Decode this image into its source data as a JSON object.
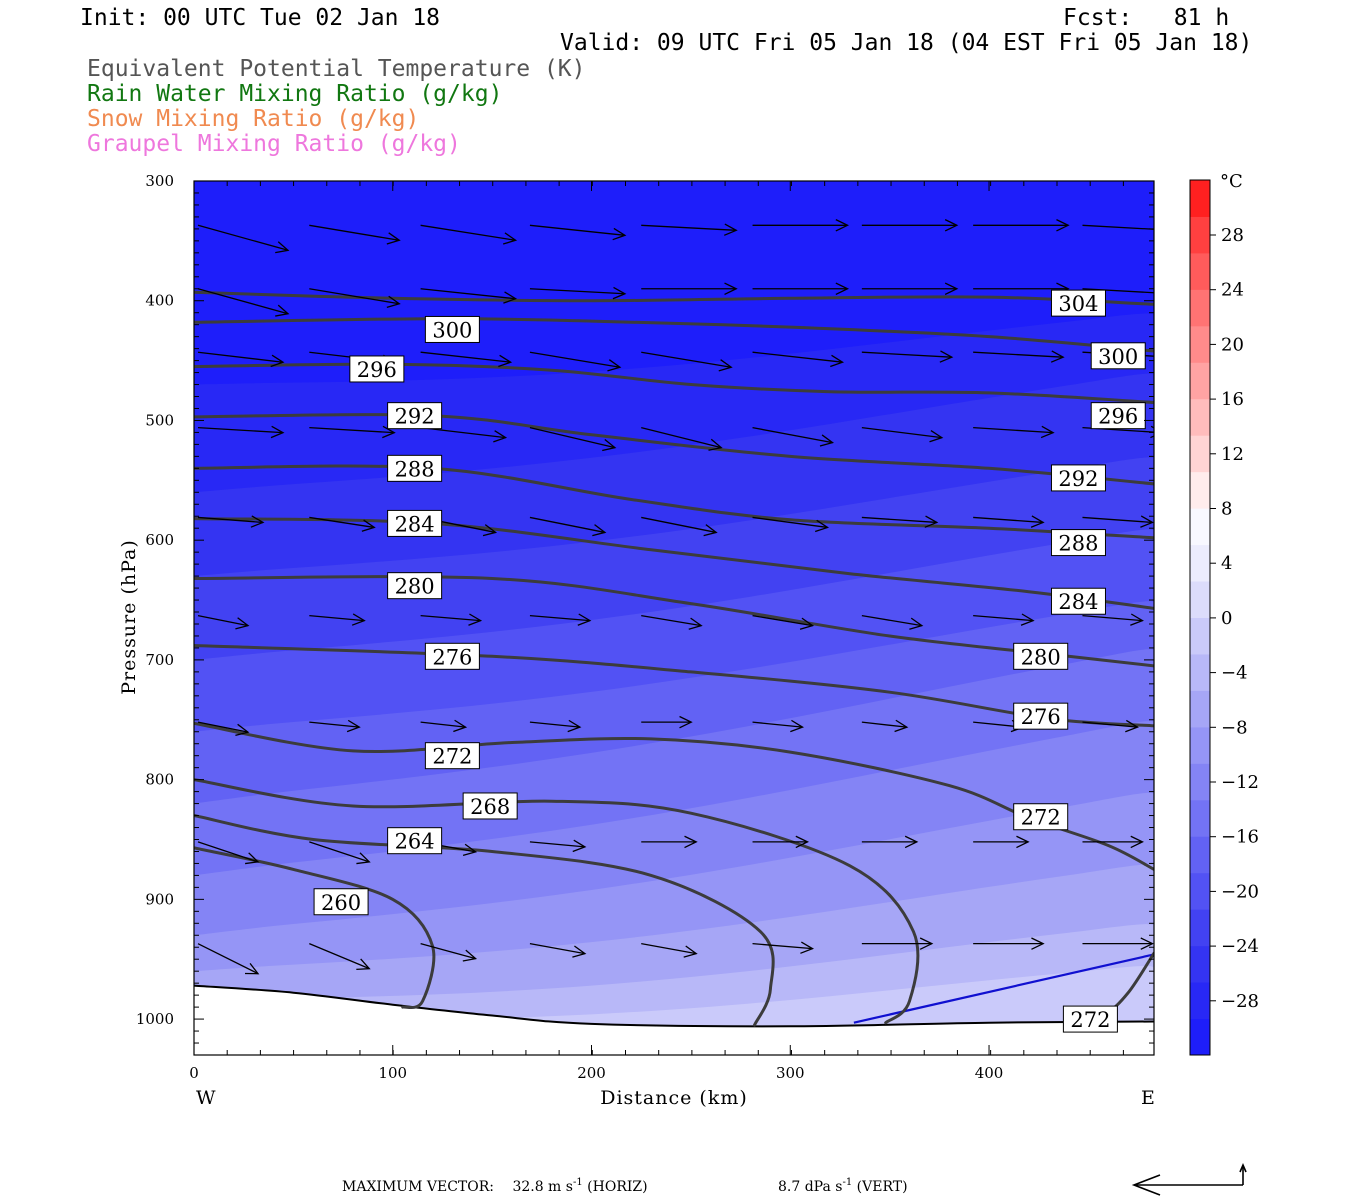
{
  "header": {
    "init": "Init: 00 UTC Tue 02 Jan 18",
    "fcst": "Fcst:   81 h",
    "valid": "Valid: 09 UTC Fri 05 Jan 18 (04 EST Fri 05 Jan 18)"
  },
  "legend": [
    {
      "text": "Equivalent Potential Temperature (K)",
      "color": "#555555"
    },
    {
      "text": "Rain Water Mixing Ratio (g/kg)",
      "color": "#117711"
    },
    {
      "text": "Snow Mixing Ratio (g/kg)",
      "color": "#f08a50"
    },
    {
      "text": "Graupel Mixing Ratio (g/kg)",
      "color": "#ee77dd"
    }
  ],
  "axes": {
    "ylabel": "Pressure (hPa)",
    "xlabel": "Distance (km)",
    "west": "W",
    "east": "E",
    "y_ticks": [
      "300",
      "400",
      "500",
      "600",
      "700",
      "800",
      "900",
      "1000"
    ],
    "x_ticks": [
      "0",
      "100",
      "200",
      "300",
      "400"
    ]
  },
  "colorbar": {
    "unit": "°C",
    "labels": [
      "28",
      "24",
      "20",
      "16",
      "12",
      "8",
      "4",
      "0",
      "−4",
      "−8",
      "−12",
      "−16",
      "−20",
      "−24",
      "−28"
    ]
  },
  "footer": {
    "prefix": "MAXIMUM VECTOR:",
    "horiz_value": "32.8 m s",
    "horiz_exp": "-1",
    "horiz_suffix": " (HORIZ)",
    "vert_value": "8.7 dPa s",
    "vert_exp": "-1",
    "vert_suffix": " (VERT)"
  },
  "chart_data": {
    "type": "contour",
    "x_range_km": [
      0,
      483
    ],
    "y_range_hpa": [
      300,
      1030
    ],
    "y_scale": "linear-pressure",
    "fill_variable_color_scale": {
      "min": -32,
      "max": 32,
      "step": 4,
      "colors": [
        "#1e1efa",
        "#2828f5",
        "#3434f2",
        "#4242f2",
        "#5252f4",
        "#6262f4",
        "#7373f5",
        "#8484f5",
        "#9595f6",
        "#a6a6f6",
        "#b8b8f8",
        "#cacafa",
        "#dcdcfb",
        "#ececfd",
        "#f8f8ff",
        "#ffecec",
        "#ffd4d4",
        "#ffbcbc",
        "#ffa3a3",
        "#ff8b8b",
        "#ff7373",
        "#ff5b5b",
        "#ff4040",
        "#ff2020"
      ]
    },
    "theta_e_contours": [
      {
        "value": 304,
        "points": [
          [
            0,
            393
          ],
          [
            100,
            398
          ],
          [
            200,
            400
          ],
          [
            300,
            398
          ],
          [
            400,
            397
          ],
          [
            483,
            403
          ]
        ]
      },
      {
        "value": 300,
        "points": [
          [
            0,
            418
          ],
          [
            120,
            415
          ],
          [
            200,
            417
          ],
          [
            300,
            422
          ],
          [
            400,
            430
          ],
          [
            483,
            442
          ]
        ]
      },
      {
        "value": 296,
        "points": [
          [
            0,
            455
          ],
          [
            100,
            453
          ],
          [
            180,
            458
          ],
          [
            250,
            470
          ],
          [
            320,
            476
          ],
          [
            400,
            477
          ],
          [
            483,
            485
          ]
        ]
      },
      {
        "value": 292,
        "points": [
          [
            0,
            497
          ],
          [
            120,
            496
          ],
          [
            200,
            512
          ],
          [
            300,
            530
          ],
          [
            400,
            540
          ],
          [
            483,
            553
          ]
        ]
      },
      {
        "value": 288,
        "points": [
          [
            0,
            540
          ],
          [
            120,
            540
          ],
          [
            220,
            566
          ],
          [
            300,
            583
          ],
          [
            400,
            590
          ],
          [
            483,
            598
          ]
        ]
      },
      {
        "value": 284,
        "points": [
          [
            0,
            582
          ],
          [
            120,
            586
          ],
          [
            230,
            608
          ],
          [
            330,
            628
          ],
          [
            420,
            643
          ],
          [
            483,
            657
          ]
        ]
      },
      {
        "value": 280,
        "points": [
          [
            0,
            632
          ],
          [
            150,
            632
          ],
          [
            250,
            653
          ],
          [
            350,
            680
          ],
          [
            440,
            697
          ],
          [
            483,
            705
          ]
        ]
      },
      {
        "value": 276,
        "points": [
          [
            0,
            688
          ],
          [
            150,
            697
          ],
          [
            250,
            710
          ],
          [
            350,
            727
          ],
          [
            430,
            749
          ],
          [
            483,
            755
          ]
        ]
      },
      {
        "value": 272,
        "points": [
          [
            0,
            753
          ],
          [
            80,
            776
          ],
          [
            160,
            769
          ],
          [
            230,
            766
          ],
          [
            300,
            777
          ],
          [
            380,
            805
          ],
          [
            420,
            832
          ],
          [
            460,
            855
          ],
          [
            483,
            875
          ]
        ]
      },
      {
        "value": 268,
        "points": [
          [
            0,
            800
          ],
          [
            80,
            822
          ],
          [
            180,
            818
          ],
          [
            250,
            828
          ],
          [
            330,
            872
          ],
          [
            362,
            927
          ],
          [
            360,
            985
          ],
          [
            348,
            1003
          ]
        ]
      },
      {
        "value": 264,
        "points": [
          [
            0,
            830
          ],
          [
            60,
            850
          ],
          [
            150,
            860
          ],
          [
            230,
            880
          ],
          [
            285,
            927
          ],
          [
            290,
            975
          ],
          [
            282,
            1005
          ]
        ]
      },
      {
        "value": 260,
        "points": [
          [
            0,
            857
          ],
          [
            50,
            875
          ],
          [
            100,
            900
          ],
          [
            120,
            939
          ],
          [
            115,
            985
          ],
          [
            105,
            990
          ]
        ]
      },
      {
        "value": 272,
        "points": [
          [
            483,
            945
          ],
          [
            470,
            978
          ],
          [
            458,
            996
          ],
          [
            440,
            1005
          ]
        ]
      }
    ],
    "contour_labels": [
      {
        "value": "304",
        "x": 445,
        "p": 402
      },
      {
        "value": "300",
        "x": 130,
        "p": 424
      },
      {
        "value": "300",
        "x": 465,
        "p": 446
      },
      {
        "value": "296",
        "x": 92,
        "p": 457
      },
      {
        "value": "296",
        "x": 465,
        "p": 496
      },
      {
        "value": "292",
        "x": 111,
        "p": 496
      },
      {
        "value": "292",
        "x": 445,
        "p": 548
      },
      {
        "value": "288",
        "x": 111,
        "p": 540
      },
      {
        "value": "288",
        "x": 445,
        "p": 602
      },
      {
        "value": "284",
        "x": 111,
        "p": 586
      },
      {
        "value": "284",
        "x": 445,
        "p": 651
      },
      {
        "value": "280",
        "x": 111,
        "p": 638
      },
      {
        "value": "280",
        "x": 426,
        "p": 697
      },
      {
        "value": "276",
        "x": 130,
        "p": 697
      },
      {
        "value": "276",
        "x": 426,
        "p": 747
      },
      {
        "value": "272",
        "x": 130,
        "p": 780
      },
      {
        "value": "272",
        "x": 426,
        "p": 831
      },
      {
        "value": "268",
        "x": 149,
        "p": 822
      },
      {
        "value": "264",
        "x": 111,
        "p": 851
      },
      {
        "value": "260",
        "x": 74,
        "p": 902
      },
      {
        "value": "272",
        "x": 451,
        "p": 1000
      }
    ],
    "ground_surface_hpa": [
      [
        0,
        972
      ],
      [
        50,
        978
      ],
      [
        100,
        988
      ],
      [
        150,
        997
      ],
      [
        200,
        1004
      ],
      [
        300,
        1006
      ],
      [
        400,
        1003
      ],
      [
        483,
        1002
      ]
    ],
    "blue_line": [
      [
        332,
        1003
      ],
      [
        483,
        946
      ]
    ],
    "wind_vectors": {
      "rows_hpa": [
        337,
        390,
        443,
        506,
        581,
        663,
        752,
        852,
        937
      ],
      "cols_km": [
        0,
        56,
        112,
        167,
        223,
        279,
        334,
        390,
        445
      ],
      "u": [
        [
          0.9,
          0.9,
          0.95,
          0.95,
          0.95,
          0.95,
          0.95,
          0.95,
          0.9
        ],
        [
          0.9,
          0.9,
          0.95,
          0.95,
          0.95,
          0.95,
          0.95,
          0.95,
          0.9
        ],
        [
          0.85,
          0.85,
          0.9,
          0.9,
          0.9,
          0.9,
          0.9,
          0.9,
          0.9
        ],
        [
          0.85,
          0.85,
          0.85,
          0.85,
          0.8,
          0.8,
          0.8,
          0.8,
          0.8
        ],
        [
          0.65,
          0.65,
          0.75,
          0.75,
          0.75,
          0.75,
          0.75,
          0.7,
          0.7
        ],
        [
          0.5,
          0.55,
          0.6,
          0.6,
          0.6,
          0.6,
          0.6,
          0.6,
          0.6
        ],
        [
          0.5,
          0.5,
          0.45,
          0.5,
          0.5,
          0.5,
          0.45,
          0.5,
          0.55
        ],
        [
          0.6,
          0.6,
          0.55,
          0.55,
          0.55,
          0.55,
          0.55,
          0.55,
          0.6
        ],
        [
          0.6,
          0.6,
          0.55,
          0.55,
          0.55,
          0.6,
          0.7,
          0.7,
          0.7
        ]
      ],
      "w": [
        [
          0.25,
          0.15,
          0.15,
          0.1,
          0.05,
          0.0,
          0.0,
          0.0,
          0.05
        ],
        [
          0.25,
          0.15,
          0.1,
          0.05,
          0.0,
          0.0,
          0.0,
          0.0,
          0.05
        ],
        [
          0.1,
          0.1,
          0.1,
          0.15,
          0.15,
          0.1,
          0.05,
          0.05,
          0.05
        ],
        [
          0.05,
          0.05,
          0.1,
          0.2,
          0.2,
          0.15,
          0.1,
          0.05,
          0.05
        ],
        [
          0.05,
          0.1,
          0.15,
          0.15,
          0.15,
          0.1,
          0.05,
          0.05,
          0.05
        ],
        [
          0.1,
          0.05,
          0.05,
          0.05,
          0.1,
          0.1,
          0.1,
          0.05,
          0.05
        ],
        [
          0.1,
          0.05,
          0.05,
          0.05,
          0.0,
          0.05,
          0.05,
          0.05,
          0.05
        ],
        [
          0.2,
          0.2,
          0.1,
          0.05,
          0.0,
          0.0,
          0.0,
          0.0,
          0.0
        ],
        [
          0.3,
          0.25,
          0.15,
          0.1,
          0.1,
          0.05,
          0.0,
          0.0,
          0.0
        ]
      ]
    }
  }
}
